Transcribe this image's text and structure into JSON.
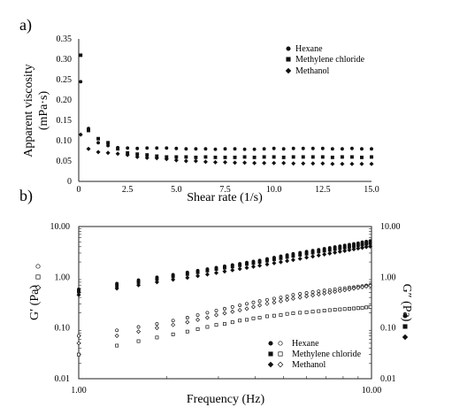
{
  "chart_data": [
    {
      "panel": "a)",
      "type": "scatter",
      "xlabel": "Shear rate (1/s)",
      "ylabel": "Apparent viscosity",
      "ylabel_unit": "(mPa·s)",
      "xlim": [
        0,
        15
      ],
      "ylim": [
        0,
        0.35
      ],
      "x_ticks": [
        "0",
        "2.5",
        "5.0",
        "7.5",
        "10.0",
        "12.5",
        "15.0"
      ],
      "y_ticks": [
        "0",
        "0.05",
        "0.10",
        "0.15",
        "0.20",
        "0.25",
        "0.30",
        "0.35"
      ],
      "legend_position": "top-right",
      "series": [
        {
          "name": "Hexane",
          "marker": "circle",
          "x": [
            0.1,
            0.5,
            1.0,
            1.5,
            2.0,
            2.5,
            3.0,
            3.5,
            4.0,
            4.5,
            5.0,
            5.5,
            6.0,
            6.5,
            7.0,
            7.5,
            8.0,
            8.5,
            9.0,
            9.5,
            10.0,
            10.5,
            11.0,
            11.5,
            12.0,
            12.5,
            13.0,
            13.5,
            14.0,
            14.5,
            15.0
          ],
          "y": [
            0.245,
            0.13,
            0.095,
            0.088,
            0.083,
            0.082,
            0.081,
            0.082,
            0.082,
            0.082,
            0.081,
            0.08,
            0.08,
            0.08,
            0.079,
            0.08,
            0.08,
            0.079,
            0.079,
            0.08,
            0.081,
            0.08,
            0.081,
            0.081,
            0.081,
            0.081,
            0.08,
            0.08,
            0.081,
            0.08,
            0.08
          ]
        },
        {
          "name": "Methylene chloride",
          "marker": "square",
          "x": [
            0.1,
            0.5,
            1.0,
            1.5,
            2.0,
            2.5,
            3.0,
            3.5,
            4.0,
            4.5,
            5.0,
            5.5,
            6.0,
            6.5,
            7.0,
            7.5,
            8.0,
            8.5,
            9.0,
            9.5,
            10.0,
            10.5,
            11.0,
            11.5,
            12.0,
            12.5,
            13.0,
            13.5,
            14.0,
            14.5,
            15.0
          ],
          "y": [
            0.31,
            0.125,
            0.105,
            0.095,
            0.08,
            0.07,
            0.067,
            0.065,
            0.062,
            0.06,
            0.06,
            0.06,
            0.059,
            0.06,
            0.059,
            0.059,
            0.059,
            0.06,
            0.059,
            0.06,
            0.06,
            0.059,
            0.06,
            0.06,
            0.06,
            0.06,
            0.059,
            0.06,
            0.06,
            0.059,
            0.06
          ]
        },
        {
          "name": "Methanol",
          "marker": "diamond",
          "x": [
            0.1,
            0.5,
            1.0,
            1.5,
            2.0,
            2.5,
            3.0,
            3.5,
            4.0,
            4.5,
            5.0,
            5.5,
            6.0,
            6.5,
            7.0,
            7.5,
            8.0,
            8.5,
            9.0,
            9.5,
            10.0,
            10.5,
            11.0,
            11.5,
            12.0,
            12.5,
            13.0,
            13.5,
            14.0,
            14.5,
            15.0
          ],
          "y": [
            0.115,
            0.08,
            0.072,
            0.07,
            0.068,
            0.065,
            0.06,
            0.058,
            0.057,
            0.055,
            0.052,
            0.05,
            0.05,
            0.048,
            0.047,
            0.047,
            0.046,
            0.046,
            0.045,
            0.045,
            0.045,
            0.045,
            0.044,
            0.044,
            0.044,
            0.044,
            0.043,
            0.043,
            0.043,
            0.043,
            0.043
          ]
        }
      ]
    },
    {
      "panel": "b)",
      "type": "scatter",
      "xscale": "log",
      "yscale": "log",
      "xlabel": "Frequency (Hz)",
      "ylabel_left": "G′ (Pa)",
      "ylabel_right": "G″ (Pa)",
      "xlim": [
        1,
        10
      ],
      "ylim": [
        0.01,
        10
      ],
      "x_ticks": [
        "1.00",
        "10.00"
      ],
      "y_ticks": [
        "0.01",
        "0.10",
        "1.00",
        "10.00"
      ],
      "legend_position": "bottom-right",
      "x": [
        1.0,
        1.35,
        1.6,
        1.85,
        2.1,
        2.35,
        2.55,
        2.75,
        2.95,
        3.15,
        3.35,
        3.55,
        3.75,
        3.95,
        4.15,
        4.4,
        4.65,
        4.9,
        5.15,
        5.4,
        5.7,
        6.0,
        6.3,
        6.6,
        6.9,
        7.2,
        7.5,
        7.8,
        8.1,
        8.4,
        8.7,
        9.0,
        9.3,
        9.6,
        9.9
      ],
      "series": [
        {
          "name": "Hexane",
          "modulus": "G′",
          "marker": "filled-circle",
          "y": [
            0.58,
            0.75,
            0.88,
            1.0,
            1.12,
            1.25,
            1.35,
            1.45,
            1.55,
            1.65,
            1.75,
            1.85,
            1.95,
            2.05,
            2.15,
            2.3,
            2.45,
            2.6,
            2.75,
            2.9,
            3.05,
            3.2,
            3.35,
            3.5,
            3.65,
            3.8,
            3.95,
            4.1,
            4.25,
            4.4,
            4.55,
            4.7,
            4.9,
            5.05,
            5.2
          ]
        },
        {
          "name": "Methylene chloride",
          "modulus": "G′",
          "marker": "filled-square",
          "y": [
            0.52,
            0.68,
            0.8,
            0.92,
            1.04,
            1.15,
            1.25,
            1.35,
            1.45,
            1.54,
            1.62,
            1.72,
            1.82,
            1.9,
            2.0,
            2.12,
            2.25,
            2.37,
            2.5,
            2.62,
            2.77,
            2.9,
            3.05,
            3.2,
            3.33,
            3.46,
            3.6,
            3.72,
            3.85,
            3.98,
            4.1,
            4.25,
            4.4,
            4.55,
            4.7
          ]
        },
        {
          "name": "Methanol",
          "modulus": "G′",
          "marker": "filled-diamond",
          "y": [
            0.45,
            0.6,
            0.7,
            0.8,
            0.9,
            0.98,
            1.06,
            1.14,
            1.22,
            1.3,
            1.38,
            1.46,
            1.54,
            1.62,
            1.7,
            1.8,
            1.9,
            2.0,
            2.1,
            2.2,
            2.32,
            2.45,
            2.57,
            2.7,
            2.82,
            2.95,
            3.07,
            3.2,
            3.32,
            3.45,
            3.57,
            3.7,
            3.82,
            3.95,
            4.05
          ]
        },
        {
          "name": "Hexane",
          "modulus": "G″",
          "marker": "open-circle",
          "y": [
            0.07,
            0.09,
            0.105,
            0.12,
            0.14,
            0.16,
            0.18,
            0.2,
            0.22,
            0.24,
            0.26,
            0.28,
            0.3,
            0.32,
            0.34,
            0.36,
            0.38,
            0.4,
            0.42,
            0.45,
            0.47,
            0.49,
            0.51,
            0.53,
            0.55,
            0.56,
            0.58,
            0.6,
            0.61,
            0.63,
            0.64,
            0.66,
            0.67,
            0.69,
            0.7
          ]
        },
        {
          "name": "Methylene chloride",
          "modulus": "G″",
          "marker": "open-square",
          "y": [
            0.03,
            0.045,
            0.055,
            0.065,
            0.075,
            0.085,
            0.095,
            0.105,
            0.115,
            0.12,
            0.13,
            0.14,
            0.145,
            0.155,
            0.16,
            0.17,
            0.175,
            0.18,
            0.19,
            0.195,
            0.2,
            0.205,
            0.21,
            0.215,
            0.22,
            0.225,
            0.23,
            0.233,
            0.236,
            0.24,
            0.243,
            0.246,
            0.25,
            0.255,
            0.26
          ]
        },
        {
          "name": "Methanol",
          "modulus": "G″",
          "marker": "open-diamond",
          "y": [
            0.05,
            0.07,
            0.085,
            0.1,
            0.115,
            0.13,
            0.145,
            0.16,
            0.18,
            0.195,
            0.21,
            0.225,
            0.24,
            0.26,
            0.28,
            0.3,
            0.32,
            0.34,
            0.36,
            0.38,
            0.4,
            0.42,
            0.44,
            0.46,
            0.48,
            0.5,
            0.52,
            0.54,
            0.56,
            0.58,
            0.6,
            0.62,
            0.64,
            0.66,
            0.68
          ]
        }
      ]
    }
  ]
}
